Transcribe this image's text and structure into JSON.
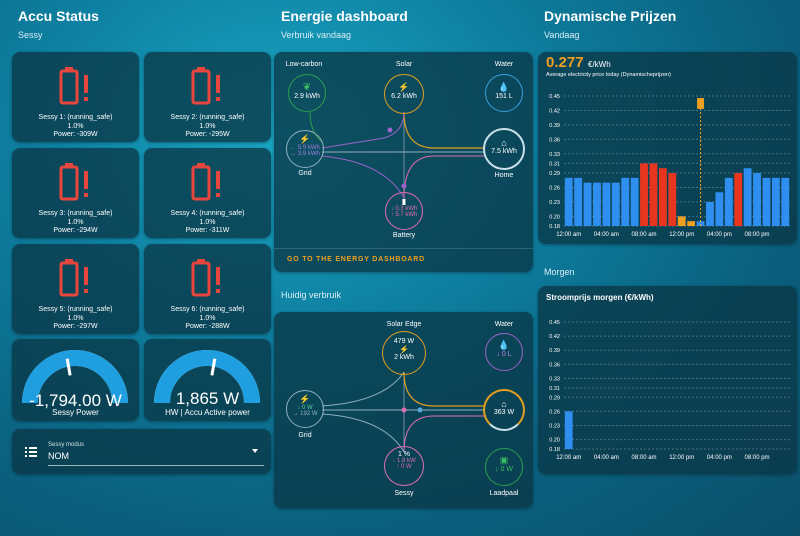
{
  "accu": {
    "title": "Accu Status",
    "subtitle": "Sessy",
    "batteries": [
      {
        "name": "Sessy 1: (running_safe)",
        "pct": "1.0%",
        "power": "Power: -309W"
      },
      {
        "name": "Sessy 2: (running_safe)",
        "pct": "1.0%",
        "power": "Power: -295W"
      },
      {
        "name": "Sessy 3: (running_safe)",
        "pct": "1.0%",
        "power": "Power: -294W"
      },
      {
        "name": "Sessy 4: (running_safe)",
        "pct": "1.0%",
        "power": "Power: -311W"
      },
      {
        "name": "Sessy 5: (running_safe)",
        "pct": "1.0%",
        "power": "Power: -297W"
      },
      {
        "name": "Sessy 6: (running_safe)",
        "pct": "1.0%",
        "power": "Power: -288W"
      }
    ],
    "gauges": [
      {
        "value": "-1,794.00 W",
        "label": "Sessy Power",
        "fraction": 0.45
      },
      {
        "value": "1,865 W",
        "label": "HW | Accu Active power",
        "fraction": 0.55
      }
    ],
    "mode": {
      "label": "Sessy modus",
      "value": "NOM"
    }
  },
  "energy": {
    "title": "Energie dashboard",
    "today_label": "Verbruik vandaag",
    "today": {
      "lowcarbon": {
        "label": "Low-carbon",
        "value": "2.9 kWh"
      },
      "solar": {
        "label": "Solar",
        "value": "6.2 kWh"
      },
      "water": {
        "label": "Water",
        "value": "151 L"
      },
      "grid": {
        "label": "Grid",
        "in": "← 5.9 kWh",
        "out": "→ 3.9 kWh"
      },
      "home": {
        "label": "Home",
        "value": "7.5 kWh"
      },
      "battery": {
        "label": "Battery",
        "in": "↓ 0.3 kWh",
        "out": "↑ 5.7 kWh"
      }
    },
    "link": "GO TO THE ENERGY DASHBOARD",
    "current_label": "Huidig verbruik",
    "current": {
      "solar": {
        "label": "Solar Edge",
        "value1": "479 W",
        "value2": "2 kWh"
      },
      "water": {
        "label": "Water",
        "value": "↓ 0 L"
      },
      "grid": {
        "label": "Grid",
        "in": "↓ 0 W",
        "out": "→ 192 W"
      },
      "home": {
        "value": "363 W"
      },
      "sessy": {
        "label": "Sessy",
        "pct": "1 %",
        "in": "↓ 1.8 kW",
        "out": "↑ 0 W"
      },
      "laadpaal": {
        "label": "Laadpaal",
        "value": "↓ 0 W"
      }
    }
  },
  "prices": {
    "title": "Dynamische Prijzen",
    "today_label": "Vandaag",
    "current_price": "0.277",
    "unit": "€/kWh",
    "desc": "Average electricity price today (Dynamischeprijzen)",
    "tomorrow_label": "Morgen",
    "tomorrow_title": "Stroomprijs morgen (€/kWh)",
    "yticks": [
      "0.45",
      "0.42",
      "0.39",
      "0.36",
      "0.33",
      "0.31",
      "0.29",
      "0.26",
      "0.23",
      "0.20",
      "0.18"
    ],
    "yticks2": [
      "0.45",
      "0.42",
      "0.39",
      "0.36",
      "0.33",
      "0.31",
      "0.29",
      "0.26",
      "0.23",
      "0.20",
      "0.18"
    ],
    "xticks": [
      "12:00 am",
      "04:00 am",
      "08:00 am",
      "12:00 pm",
      "04:00 pm",
      "08:00 pm"
    ],
    "colors": {
      "normal": "#2f8ff0",
      "high": "#e8351f",
      "low": "#f0a020"
    }
  },
  "chart_data": [
    {
      "type": "bar",
      "title": "",
      "x": [
        0,
        1,
        2,
        3,
        4,
        5,
        6,
        7,
        8,
        9,
        10,
        11,
        12,
        13,
        14,
        15,
        16,
        17,
        18,
        19,
        20,
        21,
        22,
        23
      ],
      "values": [
        0.28,
        0.28,
        0.27,
        0.27,
        0.27,
        0.27,
        0.28,
        0.28,
        0.31,
        0.31,
        0.3,
        0.29,
        0.2,
        0.19,
        0.19,
        0.23,
        0.25,
        0.28,
        0.29,
        0.3,
        0.29,
        0.28,
        0.28,
        0.28
      ],
      "highlight": [
        8,
        9,
        10,
        11
      ],
      "ylim": [
        0.18,
        0.45
      ],
      "current_marker_hour": 14
    },
    {
      "type": "bar",
      "title": "Stroomprijs morgen (€/kWh)",
      "x": [
        0
      ],
      "values": [
        0.26
      ],
      "ylim": [
        0.18,
        0.45
      ]
    }
  ]
}
